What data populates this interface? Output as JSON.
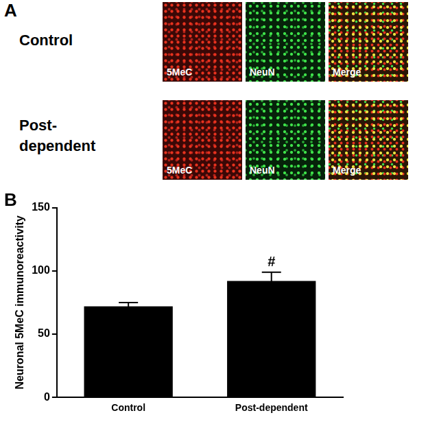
{
  "panels": {
    "A": {
      "label": "A",
      "rows": [
        {
          "label": "Control",
          "images": [
            "5MeC",
            "NeuN",
            "Merge"
          ]
        },
        {
          "label": "Post-dependent",
          "images": [
            "5MeC",
            "NeuN",
            "Merge"
          ]
        }
      ]
    },
    "B": {
      "label": "B"
    }
  },
  "chart_data": {
    "type": "bar",
    "categories": [
      "Control",
      "Post-dependent"
    ],
    "values": [
      72,
      92
    ],
    "errors": [
      3,
      7
    ],
    "color": "#000000",
    "y_label": "Neuronal 5MeC immunoreactivity",
    "ylim": [
      0,
      150
    ],
    "yticks": [
      0,
      50,
      100,
      150
    ],
    "grid": false,
    "annotations": [
      {
        "category": "Post-dependent",
        "text": "#"
      }
    ]
  }
}
